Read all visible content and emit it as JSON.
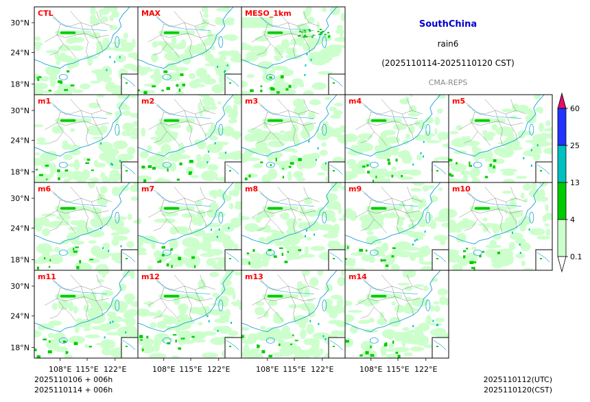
{
  "chart_data": {
    "type": "heatmap",
    "region": "SouthChina",
    "variable": "rain6",
    "period": "(2025110114-2025110120 CST)",
    "system": "CMA-REPS",
    "panels": [
      "CTL",
      "MAX",
      "MESO_1km",
      "m1",
      "m2",
      "m3",
      "m4",
      "m5",
      "m6",
      "m7",
      "m8",
      "m9",
      "m10",
      "m11",
      "m12",
      "m13",
      "m14"
    ],
    "x_ticks": [
      "108°E",
      "115°E",
      "122°E"
    ],
    "y_ticks": [
      "30°N",
      "24°N",
      "18°N"
    ],
    "colorbar": {
      "labels": [
        "0.1",
        "4",
        "13",
        "25",
        "60"
      ],
      "colors": [
        "#ccffcc",
        "#00cc00",
        "#00c0c0",
        "#2233ff",
        "#e0106a"
      ],
      "extend": "both"
    },
    "footer_left": [
      "2025110106  +  006h",
      "2025110114  +  006h"
    ],
    "footer_right": [
      "2025110112(UTC)",
      "2025110120(CST)"
    ]
  },
  "colors": {
    "title": "#0000cc",
    "panel_label": "#ff0000",
    "system": "#888888"
  }
}
